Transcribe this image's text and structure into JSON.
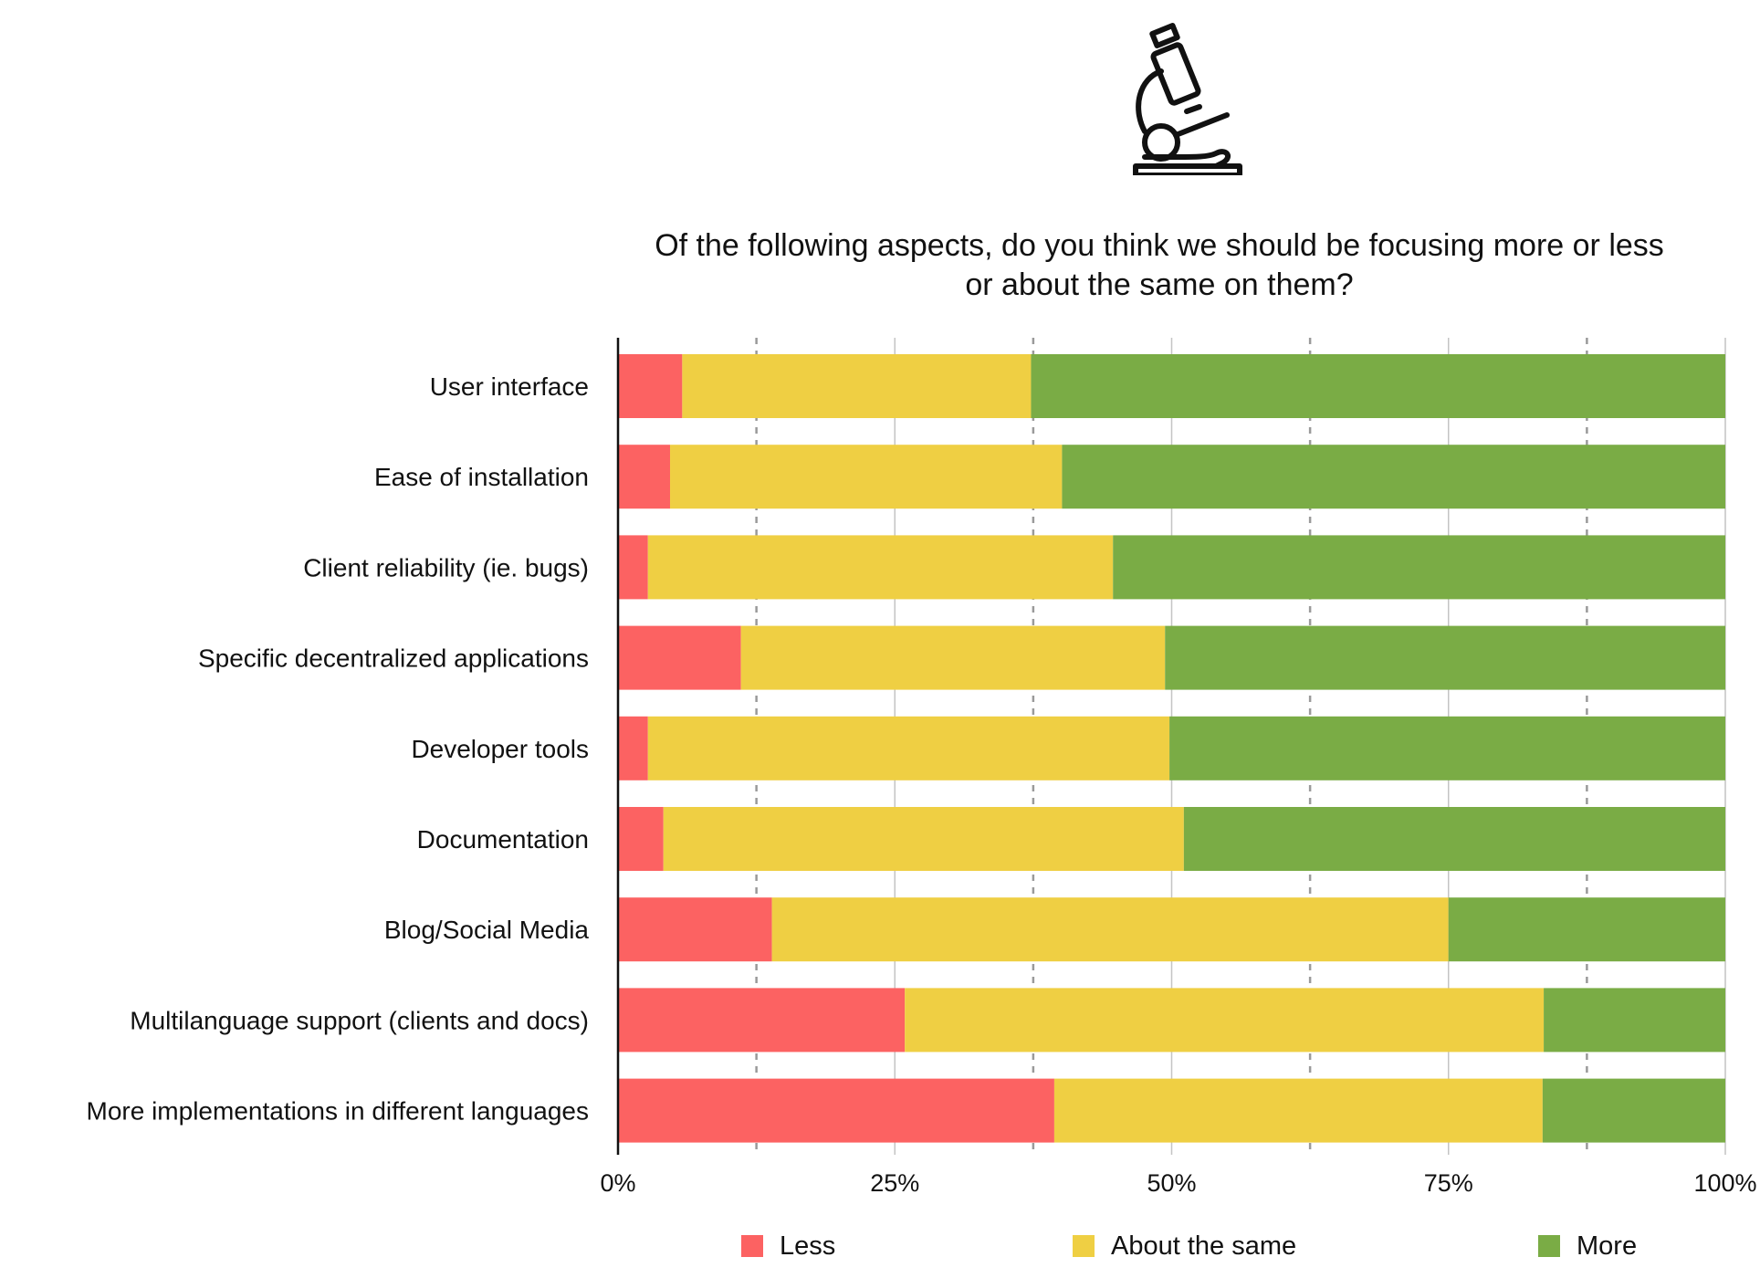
{
  "icon": "microscope-icon",
  "title": {
    "line1": "Of the following aspects, do you think we should be focusing more or less",
    "line2": "or about the same on them?"
  },
  "colors": {
    "less": "#fc6262",
    "same": "#efcf43",
    "more": "#7aac45",
    "grid": "#c4c4c4",
    "axis": "#111111"
  },
  "legend": [
    {
      "label": "Less",
      "color": "#fc6262"
    },
    {
      "label": "About the same",
      "color": "#efcf43"
    },
    {
      "label": "More",
      "color": "#7aac45"
    }
  ],
  "chart_data": {
    "type": "bar",
    "orientation": "horizontal",
    "stacked": "percent",
    "title": "Of the following aspects, do you think we should be focusing more or less or about the same on them?",
    "categories": [
      "User interface",
      "Ease of installation",
      "Client reliability (ie. bugs)",
      "Specific decentralized applications",
      "Developer tools",
      "Documentation",
      "Blog/Social Media",
      "Multilanguage support (clients and docs)",
      "More implementations in different languages"
    ],
    "series": [
      {
        "name": "Less",
        "color": "#fc6262",
        "values": [
          5.8,
          4.7,
          2.7,
          11.1,
          2.7,
          4.1,
          13.9,
          25.9,
          39.4
        ]
      },
      {
        "name": "About the same",
        "color": "#efcf43",
        "values": [
          31.5,
          35.4,
          42.0,
          38.3,
          47.1,
          47.0,
          61.1,
          57.7,
          44.1
        ]
      },
      {
        "name": "More",
        "color": "#7aac45",
        "values": [
          62.7,
          59.9,
          55.3,
          50.6,
          50.2,
          48.9,
          25.0,
          16.4,
          16.5
        ]
      }
    ],
    "xticks": [
      "0%",
      "25%",
      "50%",
      "75%",
      "100%"
    ],
    "xlim": [
      0,
      100
    ],
    "grid": true,
    "legend_position": "bottom"
  }
}
